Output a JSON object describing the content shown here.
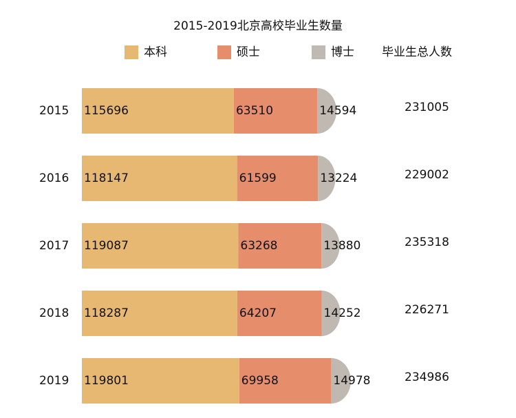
{
  "chart_data": {
    "type": "bar",
    "orientation": "horizontal",
    "stacked": true,
    "title": "2015-2019北京高校毕业生数量",
    "categories": [
      "2015",
      "2016",
      "2017",
      "2018",
      "2019"
    ],
    "series": [
      {
        "name": "本科",
        "color": "#e6b872",
        "values": [
          115696,
          118147,
          119087,
          118287,
          119801
        ]
      },
      {
        "name": "硕士",
        "color": "#e68d6b",
        "values": [
          63510,
          61599,
          63268,
          64207,
          69958
        ]
      },
      {
        "name": "博士",
        "color": "#bfb9b2",
        "values": [
          14594,
          13224,
          13880,
          14252,
          14978
        ]
      }
    ],
    "totals": {
      "name": "毕业生总人数",
      "color": "#e8362b",
      "values": [
        231005,
        229002,
        235318,
        226271,
        234986
      ]
    }
  }
}
